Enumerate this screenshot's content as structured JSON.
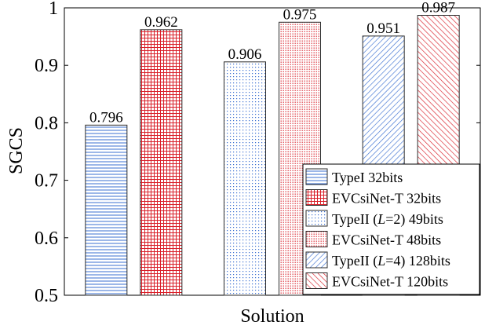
{
  "chart_data": {
    "type": "bar",
    "title": "",
    "xlabel": "Solution",
    "ylabel": "SGCS",
    "ylim": [
      0.5,
      1.0
    ],
    "yticks": [
      0.5,
      0.6,
      0.7,
      0.8,
      0.9,
      1.0
    ],
    "ytick_labels": [
      "0.5",
      "0.6",
      "0.7",
      "0.8",
      "0.9",
      "1"
    ],
    "grid": false,
    "legend_position": "bottom-right",
    "groups": [
      {
        "bars": [
          0,
          1
        ]
      },
      {
        "bars": [
          2,
          3
        ]
      },
      {
        "bars": [
          4,
          5
        ]
      }
    ],
    "series": [
      {
        "name": "TypeI 32bits",
        "name_parts": [
          {
            "t": "TypeI 32bits",
            "i": false
          }
        ],
        "value": 0.796,
        "label": "0.796",
        "color": "#3a6fd1",
        "pattern": "hlines"
      },
      {
        "name": "EVCsiNet-T 32bits",
        "name_parts": [
          {
            "t": "EVCsiNet-T 32bits",
            "i": false
          }
        ],
        "value": 0.962,
        "label": "0.962",
        "color": "#d9202a",
        "pattern": "grid"
      },
      {
        "name": "TypeII (L=2) 49bits",
        "name_parts": [
          {
            "t": "TypeII (",
            "i": false
          },
          {
            "t": "L",
            "i": true
          },
          {
            "t": "=2) 49bits",
            "i": false
          }
        ],
        "value": 0.906,
        "label": "0.906",
        "color": "#3a6fd1",
        "pattern": "dots"
      },
      {
        "name": "EVCsiNet-T 48bits",
        "name_parts": [
          {
            "t": "EVCsiNet-T 48bits",
            "i": false
          }
        ],
        "value": 0.975,
        "label": "0.975",
        "color": "#d9202a",
        "pattern": "dense-dots"
      },
      {
        "name": "TypeII (L=4) 128bits",
        "name_parts": [
          {
            "t": "TypeII (",
            "i": false
          },
          {
            "t": "L",
            "i": true
          },
          {
            "t": "=4) 128bits",
            "i": false
          }
        ],
        "value": 0.951,
        "label": "0.951",
        "color": "#3a6fd1",
        "pattern": "diag-back"
      },
      {
        "name": "EVCsiNet-T 120bits",
        "name_parts": [
          {
            "t": "EVCsiNet-T 120bits",
            "i": false
          }
        ],
        "value": 0.987,
        "label": "0.987",
        "color": "#d9202a",
        "pattern": "diag-fwd"
      }
    ]
  }
}
